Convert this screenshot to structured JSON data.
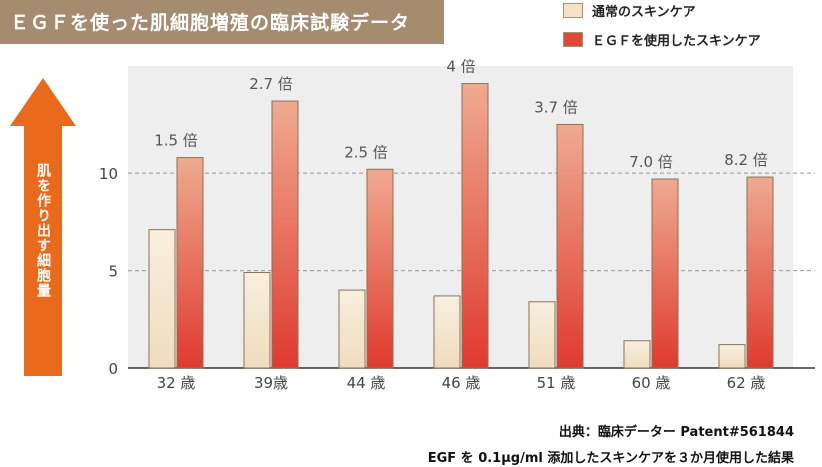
{
  "header": {
    "title": "ＥＧＦを使った肌細胞増殖の臨床試験データ"
  },
  "legend": [
    {
      "label": "通常のスキンケア",
      "color": "#f3e2c6"
    },
    {
      "label": "ＥＧＦを使用したスキンケア",
      "color": "#e0483a"
    }
  ],
  "ylabel": "肌を作り出す細胞量",
  "footer": {
    "source": "出典：臨床データー Patent#561844",
    "note": "EGF を 0.1µg/ml 添加したスキンケアを３か月使用した結果"
  },
  "colors": {
    "title_bg": "#a68c6f",
    "plot_bg": "#eeeeee",
    "arrow": "#ea6a1b",
    "normal_bar_top": "#f8efde",
    "normal_bar_bottom": "#efdcbd",
    "egf_bar_top": "#efaa90",
    "egf_bar_bottom": "#e03a2e",
    "bar_border": "#8a7358"
  },
  "chart_data": {
    "type": "bar",
    "categories": [
      "32 歳",
      "39歳",
      "44 歳",
      "46 歳",
      "51 歳",
      "60 歳",
      "62 歳"
    ],
    "series": [
      {
        "name": "通常のスキンケア",
        "values": [
          7.1,
          4.9,
          4.0,
          3.7,
          3.4,
          1.4,
          1.2
        ]
      },
      {
        "name": "ＥＧＦを使用したスキンケア",
        "values": [
          10.8,
          13.7,
          10.2,
          14.6,
          12.5,
          9.7,
          9.8
        ]
      }
    ],
    "ratio_labels": [
      "1.5 倍",
      "2.7 倍",
      "2.5 倍",
      "4 倍",
      "3.7 倍",
      "7.0 倍",
      "8.2 倍"
    ],
    "yticks": [
      0,
      5,
      10
    ],
    "ylim": [
      0,
      15.5
    ],
    "grid": "dashed at 5 and 10",
    "ylabel": "肌を作り出す細胞量",
    "legend_position": "top-right"
  }
}
